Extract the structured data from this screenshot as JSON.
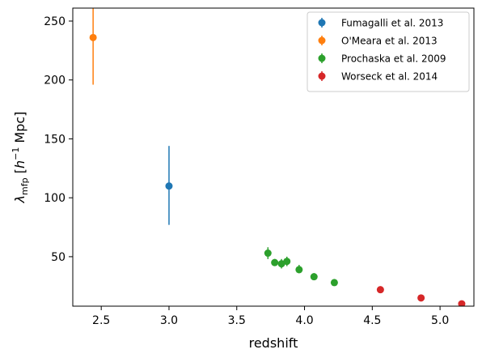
{
  "chart_data": {
    "type": "scatter",
    "xlabel": "redshift",
    "ylabel_parts": {
      "symbol": "λ",
      "subscript": "mfp",
      "unit_open": " [",
      "unit_h": "h",
      "unit_exp": "−1",
      "unit_rest": " Mpc]"
    },
    "xlim": [
      2.29,
      5.25
    ],
    "ylim": [
      8,
      261
    ],
    "xticks": [
      2.5,
      3.0,
      3.5,
      4.0,
      4.5,
      5.0
    ],
    "xtick_labels": [
      "2.5",
      "3.0",
      "3.5",
      "4.0",
      "4.5",
      "5.0"
    ],
    "yticks": [
      50,
      100,
      150,
      200,
      250
    ],
    "ytick_labels": [
      "50",
      "100",
      "150",
      "200",
      "250"
    ],
    "grid": false,
    "legend_position": "top-right",
    "series": [
      {
        "name": "Fumagalli et al. 2013",
        "color": "#1f77b4",
        "points": [
          {
            "x": 3.0,
            "y": 110,
            "ylo": 77,
            "yhi": 144
          }
        ]
      },
      {
        "name": "O'Meara et al. 2013",
        "color": "#ff7f0e",
        "points": [
          {
            "x": 2.44,
            "y": 236,
            "ylo": 196,
            "yhi": 275
          }
        ]
      },
      {
        "name": "Prochaska et al. 2009",
        "color": "#2ca02c",
        "points": [
          {
            "x": 3.73,
            "y": 53,
            "ylo": 48,
            "yhi": 58
          },
          {
            "x": 3.78,
            "y": 45,
            "ylo": 42,
            "yhi": 48
          },
          {
            "x": 3.83,
            "y": 44,
            "ylo": 40,
            "yhi": 48
          },
          {
            "x": 3.87,
            "y": 46,
            "ylo": 42,
            "yhi": 50
          },
          {
            "x": 3.96,
            "y": 39,
            "ylo": 36,
            "yhi": 43
          },
          {
            "x": 4.07,
            "y": 33,
            "ylo": 30,
            "yhi": 36
          },
          {
            "x": 4.22,
            "y": 28,
            "ylo": 26,
            "yhi": 30
          }
        ]
      },
      {
        "name": "Worseck et al. 2014",
        "color": "#d62728",
        "points": [
          {
            "x": 4.56,
            "y": 22,
            "ylo": 20.5,
            "yhi": 23.5
          },
          {
            "x": 4.86,
            "y": 15,
            "ylo": 14,
            "yhi": 16
          },
          {
            "x": 5.16,
            "y": 10,
            "ylo": 9,
            "yhi": 11
          }
        ]
      }
    ]
  }
}
